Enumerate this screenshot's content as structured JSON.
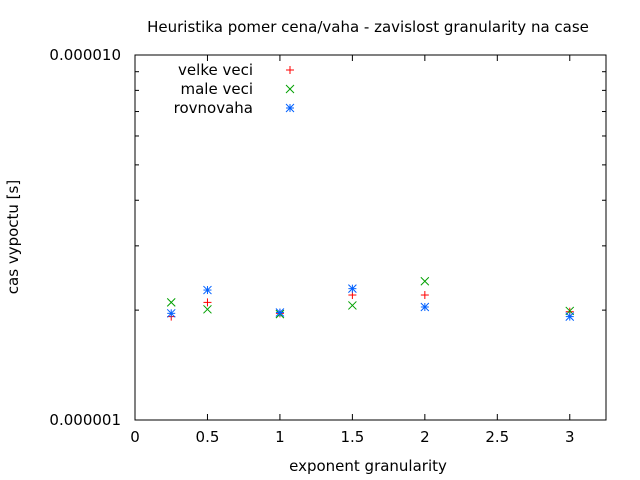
{
  "chart_data": {
    "type": "scatter",
    "title": "Heuristika pomer cena/vaha - zavislost granularity na case",
    "xlabel": "exponent granularity",
    "ylabel": "cas vypoctu [s]",
    "xlim": [
      0,
      3.25
    ],
    "ylim": [
      1e-06,
      1e-05
    ],
    "y_scale": "log",
    "x_ticks": [
      "0",
      "0.5",
      "1",
      "1.5",
      "2",
      "2.5",
      "3"
    ],
    "y_ticks": [
      "0.000001",
      "0.000010"
    ],
    "grid": false,
    "legend_position": "top-left",
    "series": [
      {
        "name": "velke veci",
        "marker": "+",
        "color": "#ff0000",
        "points": [
          [
            0.25,
            1.92e-06
          ],
          [
            0.5,
            2.1e-06
          ],
          [
            1,
            1.96e-06
          ],
          [
            1.5,
            2.2e-06
          ],
          [
            2,
            2.2e-06
          ],
          [
            3,
            1.98e-06
          ]
        ]
      },
      {
        "name": "male veci",
        "marker": "x",
        "color": "#00a000",
        "points": [
          [
            0.25,
            2.1e-06
          ],
          [
            0.5,
            2.01e-06
          ],
          [
            1,
            1.95e-06
          ],
          [
            1.5,
            2.06e-06
          ],
          [
            2,
            2.4e-06
          ],
          [
            3,
            1.99e-06
          ]
        ]
      },
      {
        "name": "rovnovaha",
        "marker": "*",
        "color": "#0060ff",
        "points": [
          [
            0.25,
            1.96e-06
          ],
          [
            0.5,
            2.27e-06
          ],
          [
            1,
            1.97e-06
          ],
          [
            1.5,
            2.29e-06
          ],
          [
            2,
            2.04e-06
          ],
          [
            3,
            1.92e-06
          ]
        ]
      }
    ]
  }
}
